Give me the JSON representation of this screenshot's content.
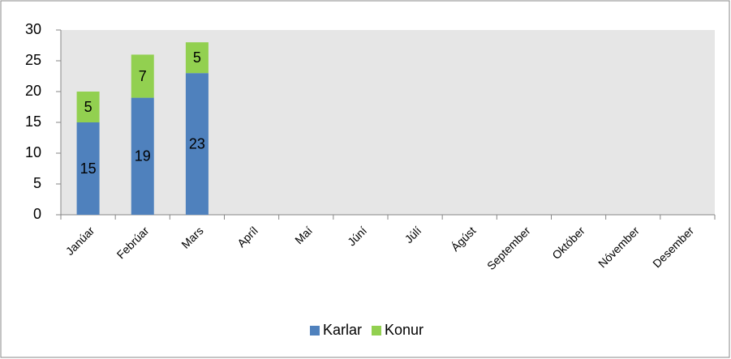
{
  "chart_data": {
    "type": "stacked-bar",
    "categories": [
      "Janúar",
      "Febrúar",
      "Mars",
      "Apríl",
      "Maí",
      "Júní",
      "Júlí",
      "Ágúst",
      "September",
      "Október",
      "Nóvember",
      "Desember"
    ],
    "series": [
      {
        "name": "Karlar",
        "color": "#4f81bd",
        "values": [
          15,
          19,
          23,
          null,
          null,
          null,
          null,
          null,
          null,
          null,
          null,
          null
        ]
      },
      {
        "name": "Konur",
        "color": "#92d050",
        "values": [
          5,
          7,
          5,
          null,
          null,
          null,
          null,
          null,
          null,
          null,
          null,
          null
        ]
      }
    ],
    "ylim": [
      0,
      30
    ],
    "yticks": [
      0,
      5,
      10,
      15,
      20,
      25,
      30
    ],
    "legend": "bottom"
  }
}
